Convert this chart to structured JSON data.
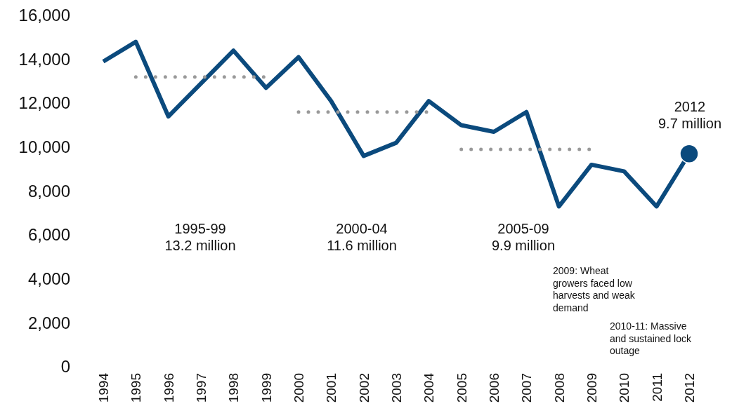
{
  "chart_data": {
    "type": "line",
    "categories": [
      "1994",
      "1995",
      "1996",
      "1997",
      "1998",
      "1999",
      "2000",
      "2001",
      "2002",
      "2003",
      "2004",
      "2005",
      "2006",
      "2007",
      "2008",
      "2009",
      "2010",
      "2011",
      "2012"
    ],
    "ylim": [
      0,
      16000
    ],
    "yticks": [
      {
        "value": 0,
        "label": "0"
      },
      {
        "value": 2000,
        "label": "2,000"
      },
      {
        "value": 4000,
        "label": "4,000"
      },
      {
        "value": 6000,
        "label": "6,000"
      },
      {
        "value": 8000,
        "label": "8,000"
      },
      {
        "value": 10000,
        "label": "10,000"
      },
      {
        "value": 12000,
        "label": "12,000"
      },
      {
        "value": 14000,
        "label": "14,000"
      },
      {
        "value": 16000,
        "label": "16,000"
      }
    ],
    "series": [
      {
        "color": "#0b4a7d",
        "line_style": "solid",
        "values": [
          13900,
          14800,
          11400,
          12900,
          14400,
          12700,
          14100,
          12100,
          9600,
          10200,
          12100,
          11000,
          10700,
          11600,
          7300,
          9200,
          8900,
          7300,
          9700
        ]
      },
      {
        "color": "#999999",
        "line_style": "dotted",
        "values": [
          null,
          13200,
          13200,
          13200,
          13200,
          13200,
          null,
          null,
          null,
          null,
          null,
          null,
          null,
          null,
          null,
          null,
          null,
          null,
          null
        ]
      },
      {
        "color": "#999999",
        "line_style": "dotted",
        "values": [
          null,
          null,
          null,
          null,
          null,
          null,
          11600,
          11600,
          11600,
          11600,
          11600,
          null,
          null,
          null,
          null,
          null,
          null,
          null,
          null
        ]
      },
      {
        "color": "#999999",
        "line_style": "dotted",
        "values": [
          null,
          null,
          null,
          null,
          null,
          null,
          null,
          null,
          null,
          null,
          null,
          9900,
          9900,
          9900,
          9900,
          9900,
          null,
          null,
          null
        ]
      },
      {
        "type": "scatter",
        "marker": "circle",
        "color": "#0b4a7d",
        "values": [
          null,
          null,
          null,
          null,
          null,
          null,
          null,
          null,
          null,
          null,
          null,
          null,
          null,
          null,
          null,
          null,
          null,
          null,
          9700
        ]
      }
    ],
    "annotations": [
      "1995-99\n13.2 million",
      "2000-04\n11.6 million",
      "2005-09\n9.9 million",
      "2012\n9.7 million",
      "2009: Wheat growers faced low harvests and weak demand",
      "2010-11: Massive and sustained lock outage"
    ]
  }
}
